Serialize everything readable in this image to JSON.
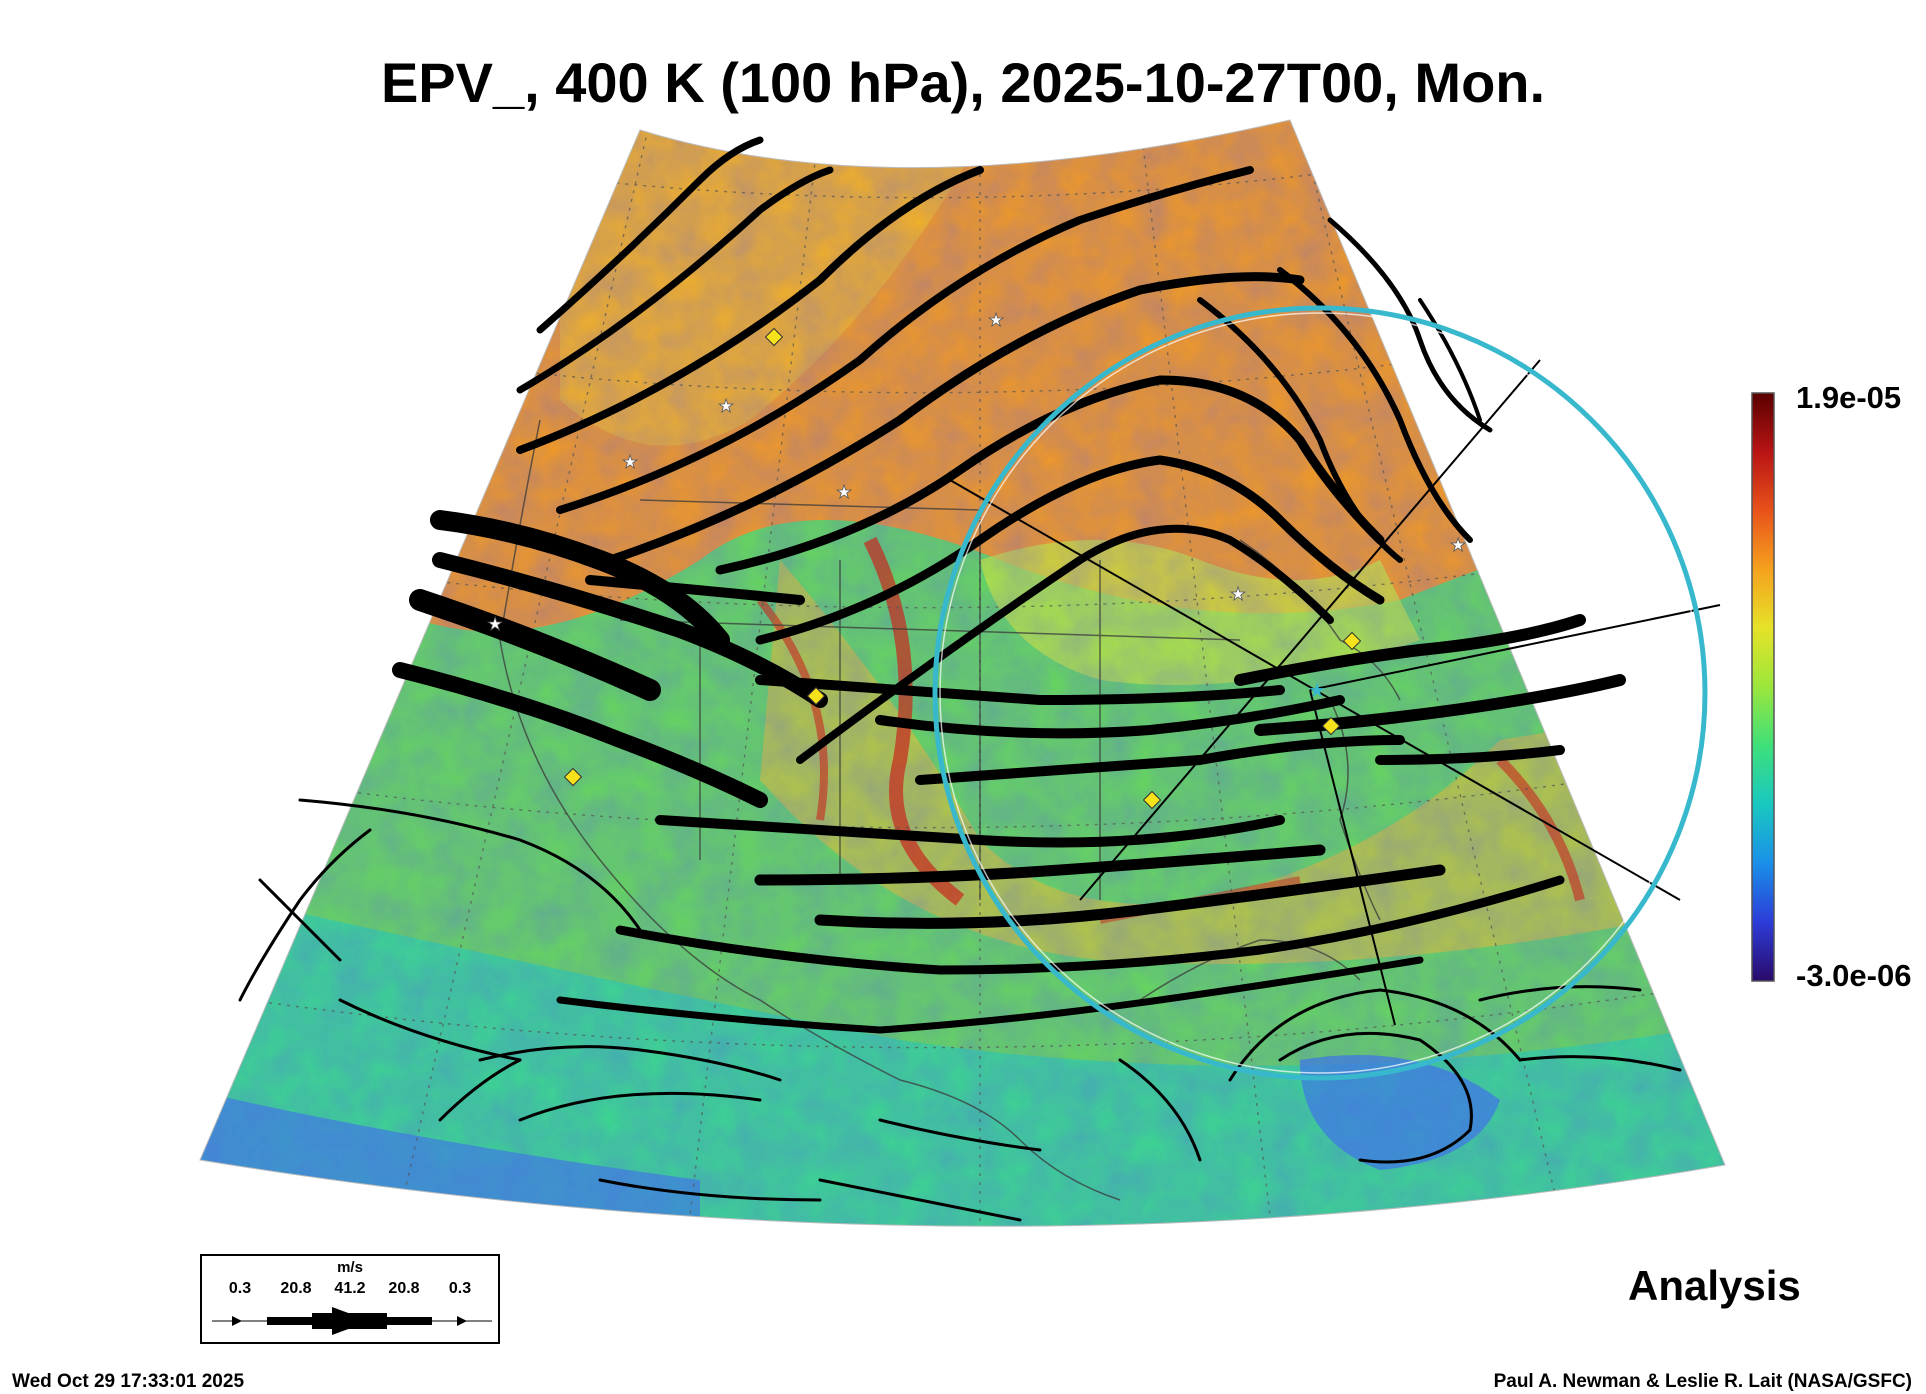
{
  "title": "EPV_, 400 K (100 hPa), 2025-10-27T00, Mon.",
  "colorbar": {
    "max_label": "1.9e-05",
    "min_label": "-3.0e-06",
    "colors": [
      "#2a0a6a",
      "#2c3cd8",
      "#1a8fe8",
      "#19c8c0",
      "#3ee07a",
      "#9be63c",
      "#e6e228",
      "#f5a21e",
      "#e8521a",
      "#b81414",
      "#5a0000"
    ]
  },
  "legend": {
    "unit": "m/s",
    "ticks": [
      "0.3",
      "20.8",
      "41.2",
      "20.8",
      "0.3"
    ]
  },
  "analysis_label": "Analysis",
  "timestamp": "Wed Oct 29 17:33:01 2025",
  "credit": "Paul A. Newman & Leslie R. Lait (NASA/GSFC)",
  "map": {
    "colors": {
      "polar": "#f29a22",
      "warm": "#f0c32a",
      "mid": "#8fdc46",
      "south": "#2fd5a0",
      "low": "#3a7fe0",
      "ridge": "#c8281e",
      "circle": "#38b8cc",
      "marker_diamond": "#f6e21a",
      "marker_star": "#ffffff"
    }
  }
}
